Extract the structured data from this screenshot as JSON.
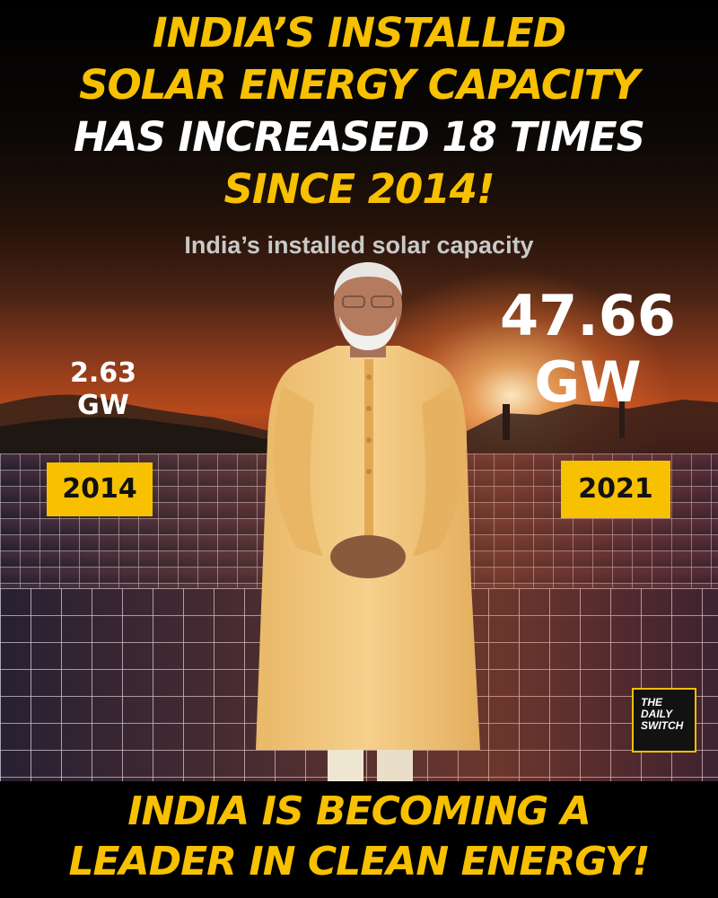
{
  "headline": {
    "line1": "INDIA’S INSTALLED",
    "line2": "SOLAR ENERGY CAPACITY",
    "line3": "HAS INCREASED 18 TIMES",
    "line4": "SINCE 2014!"
  },
  "subtitle": "India’s installed solar capacity",
  "left": {
    "value": "2.63",
    "unit": "GW",
    "year": "2014"
  },
  "right": {
    "value": "47.66",
    "unit": "GW",
    "year": "2021"
  },
  "logo": {
    "line1": "THE",
    "line2": "DAILY",
    "line3": "SWITCH"
  },
  "footer": {
    "line1": "INDIA IS BECOMING A",
    "line2": "LEADER IN CLEAN ENERGY!"
  },
  "colors": {
    "accent": "#f7c000",
    "text": "#ffffff",
    "background": "#000000"
  }
}
